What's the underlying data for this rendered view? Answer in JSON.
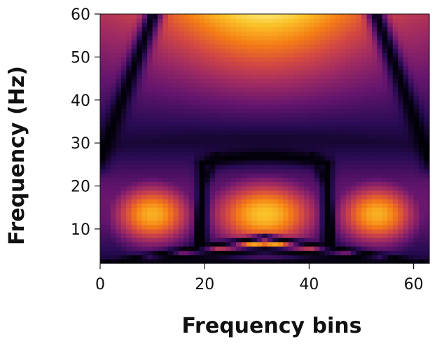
{
  "chart_data": {
    "type": "heatmap",
    "title": "",
    "xlabel": "Frequency bins",
    "ylabel": "Frequency (Hz)",
    "xlim": [
      0,
      63
    ],
    "ylim": [
      2,
      60
    ],
    "x_ticks": [
      0,
      20,
      40,
      60
    ],
    "y_ticks": [
      10,
      20,
      30,
      40,
      50,
      60
    ],
    "x_tick_labels": [
      "0",
      "20",
      "40",
      "60"
    ],
    "y_tick_labels": [
      "10",
      "20",
      "30",
      "40",
      "50",
      "60"
    ],
    "grid": false,
    "colormap": "inferno",
    "colormap_stops": [
      "#000004",
      "#280b54",
      "#65156e",
      "#9f2a63",
      "#d44842",
      "#f57d15",
      "#fac228",
      "#fcffa4"
    ],
    "value_range": [
      0,
      1
    ],
    "x_bins": 63,
    "y_range_bins": [
      2,
      60
    ],
    "description_of_features": [
      {
        "label": "top hot region",
        "x_center": 31,
        "y_center": 58,
        "peak": 0.95
      },
      {
        "label": "left lobe",
        "x_center": 10,
        "y_center": 13,
        "peak": 0.82
      },
      {
        "label": "center lobe",
        "x_center": 31,
        "y_center": 13,
        "peak": 0.85
      },
      {
        "label": "right lobe",
        "x_center": 53,
        "y_center": 13,
        "peak": 0.82
      }
    ]
  }
}
